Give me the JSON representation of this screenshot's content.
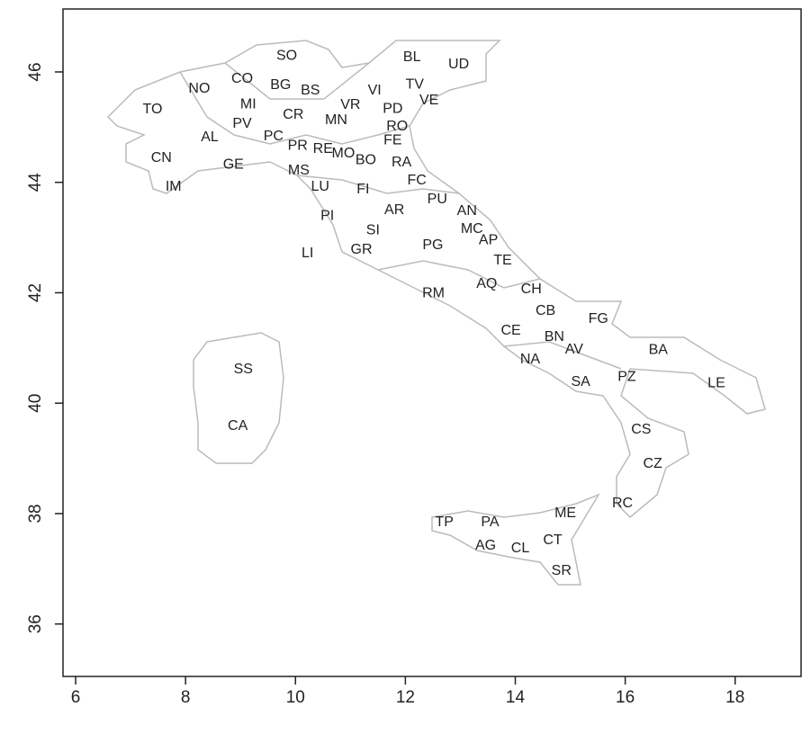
{
  "chart_data": {
    "type": "map",
    "xlim": [
      5.77,
      19.2
    ],
    "ylim": [
      35.05,
      47.14
    ],
    "xticks": [
      6,
      8,
      10,
      12,
      14,
      16,
      18
    ],
    "yticks": [
      36,
      38,
      40,
      42,
      44,
      46
    ],
    "color": "#222222",
    "labels": [
      "SO",
      "BL",
      "UD",
      "CO",
      "NO",
      "BG",
      "BS",
      "VI",
      "TV",
      "VE",
      "TO",
      "MI",
      "VR",
      "PD",
      "CR",
      "MN",
      "RO",
      "PV",
      "AL",
      "PC",
      "FE",
      "PR",
      "RE",
      "MO",
      "CN",
      "BO",
      "RA",
      "GE",
      "MS",
      "FC",
      "IM",
      "LU",
      "FI",
      "PU",
      "AR",
      "AN",
      "PI",
      "SI",
      "MC",
      "AP",
      "PG",
      "GR",
      "LI",
      "TE",
      "AQ",
      "RM",
      "CH",
      "CB",
      "FG",
      "CE",
      "BN",
      "BA",
      "AV",
      "NA",
      "SS",
      "PZ",
      "SA",
      "LE",
      "CA",
      "CS",
      "CZ",
      "RC",
      "ME",
      "TP",
      "PA",
      "CT",
      "AG",
      "CL",
      "SR"
    ],
    "x": [
      9.84,
      12.12,
      12.97,
      9.03,
      8.25,
      9.73,
      10.27,
      11.44,
      12.17,
      12.43,
      7.4,
      9.14,
      11.0,
      11.77,
      9.96,
      10.74,
      11.85,
      9.03,
      8.44,
      9.6,
      11.77,
      10.04,
      10.5,
      10.87,
      7.56,
      11.28,
      11.93,
      8.87,
      10.06,
      12.21,
      7.78,
      10.45,
      11.23,
      12.58,
      11.8,
      13.12,
      10.58,
      11.41,
      13.21,
      13.51,
      12.5,
      11.2,
      10.22,
      13.77,
      13.48,
      12.51,
      14.29,
      14.55,
      15.51,
      13.92,
      14.71,
      16.6,
      15.07,
      14.27,
      9.05,
      16.03,
      15.19,
      17.66,
      8.95,
      16.29,
      16.5,
      15.95,
      14.91,
      12.71,
      13.54,
      14.68,
      13.46,
      14.09,
      14.84
    ],
    "y": [
      46.29,
      46.26,
      46.13,
      45.87,
      45.69,
      45.76,
      45.66,
      45.66,
      45.77,
      45.48,
      45.32,
      45.41,
      45.4,
      45.33,
      45.22,
      45.12,
      45.01,
      45.06,
      44.81,
      44.83,
      44.76,
      44.66,
      44.6,
      44.52,
      44.44,
      44.4,
      44.36,
      44.32,
      44.21,
      44.03,
      43.92,
      43.92,
      43.87,
      43.69,
      43.49,
      43.48,
      43.39,
      43.13,
      43.15,
      42.95,
      42.86,
      42.78,
      42.71,
      42.58,
      42.16,
      41.99,
      42.06,
      41.67,
      41.52,
      41.31,
      41.2,
      40.96,
      40.97,
      40.79,
      40.61,
      40.47,
      40.38,
      40.36,
      39.58,
      39.52,
      38.9,
      38.18,
      38.0,
      37.84,
      37.84,
      37.51,
      37.42,
      37.37,
      36.96
    ]
  }
}
